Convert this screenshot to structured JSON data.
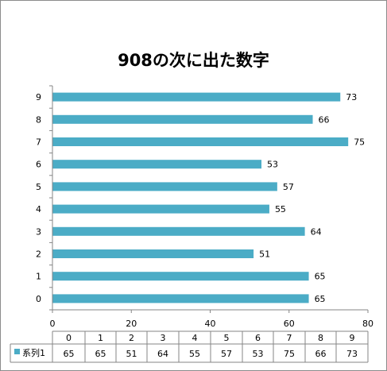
{
  "chart_data": {
    "type": "bar",
    "orientation": "horizontal",
    "title": "908の次に出た数字",
    "categories": [
      "0",
      "1",
      "2",
      "3",
      "4",
      "5",
      "6",
      "7",
      "8",
      "9"
    ],
    "series": [
      {
        "name": "系列1",
        "values": [
          65,
          65,
          51,
          64,
          55,
          57,
          53,
          75,
          66,
          73
        ],
        "color": "#4bacc6"
      }
    ],
    "xlim": [
      0,
      80
    ],
    "x_ticks": [
      0,
      20,
      40,
      60,
      80
    ],
    "grid": false,
    "data_labels": true,
    "data_table": true,
    "legend": "data-table"
  }
}
